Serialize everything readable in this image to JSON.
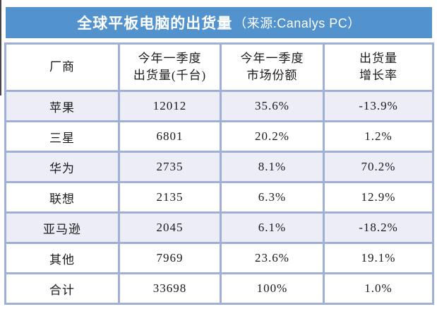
{
  "title": {
    "main": "全球平板电脑的出货量",
    "source": "（来源:Canalys PC）"
  },
  "table": {
    "headers": [
      {
        "line1": "厂商",
        "line2": ""
      },
      {
        "line1": "今年一季度",
        "line2": "出货量(千台)"
      },
      {
        "line1": "今年一季度",
        "line2": "市场份额"
      },
      {
        "line1": "出货量",
        "line2": "增长率"
      }
    ],
    "rows": [
      {
        "vendor": "苹果",
        "shipments": "12012",
        "share": "35.6%",
        "growth": "-13.9%",
        "shaded": true
      },
      {
        "vendor": "三星",
        "shipments": "6801",
        "share": "20.2%",
        "growth": "1.2%",
        "shaded": false
      },
      {
        "vendor": "华为",
        "shipments": "2735",
        "share": "8.1%",
        "growth": "70.2%",
        "shaded": true
      },
      {
        "vendor": "联想",
        "shipments": "2135",
        "share": "6.3%",
        "growth": "12.9%",
        "shaded": false
      },
      {
        "vendor": "亚马逊",
        "shipments": "2045",
        "share": "6.1%",
        "growth": "-18.2%",
        "shaded": true
      },
      {
        "vendor": "其他",
        "shipments": "7969",
        "share": "23.6%",
        "growth": "19.1%",
        "shaded": false
      },
      {
        "vendor": "合计",
        "shipments": "33698",
        "share": "100%",
        "growth": "1.0%",
        "shaded": false
      }
    ]
  },
  "colors": {
    "title_bg": "#5293ce",
    "table_border": "#9fafd8",
    "shaded_row_bg": "#ecedf6",
    "title_text": "#ffffff",
    "cell_text": "#1a1a1a"
  },
  "chart_data": {
    "type": "table",
    "title": "全球平板电脑的出货量（来源:Canalys PC）",
    "columns": [
      "厂商",
      "今年一季度出货量(千台)",
      "今年一季度市场份额",
      "出货量增长率"
    ],
    "rows": [
      [
        "苹果",
        12012,
        "35.6%",
        "-13.9%"
      ],
      [
        "三星",
        6801,
        "20.2%",
        "1.2%"
      ],
      [
        "华为",
        2735,
        "8.1%",
        "70.2%"
      ],
      [
        "联想",
        2135,
        "6.3%",
        "12.9%"
      ],
      [
        "亚马逊",
        2045,
        "6.1%",
        "-18.2%"
      ],
      [
        "其他",
        7969,
        "23.6%",
        "19.1%"
      ],
      [
        "合计",
        33698,
        "100%",
        "1.0%"
      ]
    ]
  }
}
